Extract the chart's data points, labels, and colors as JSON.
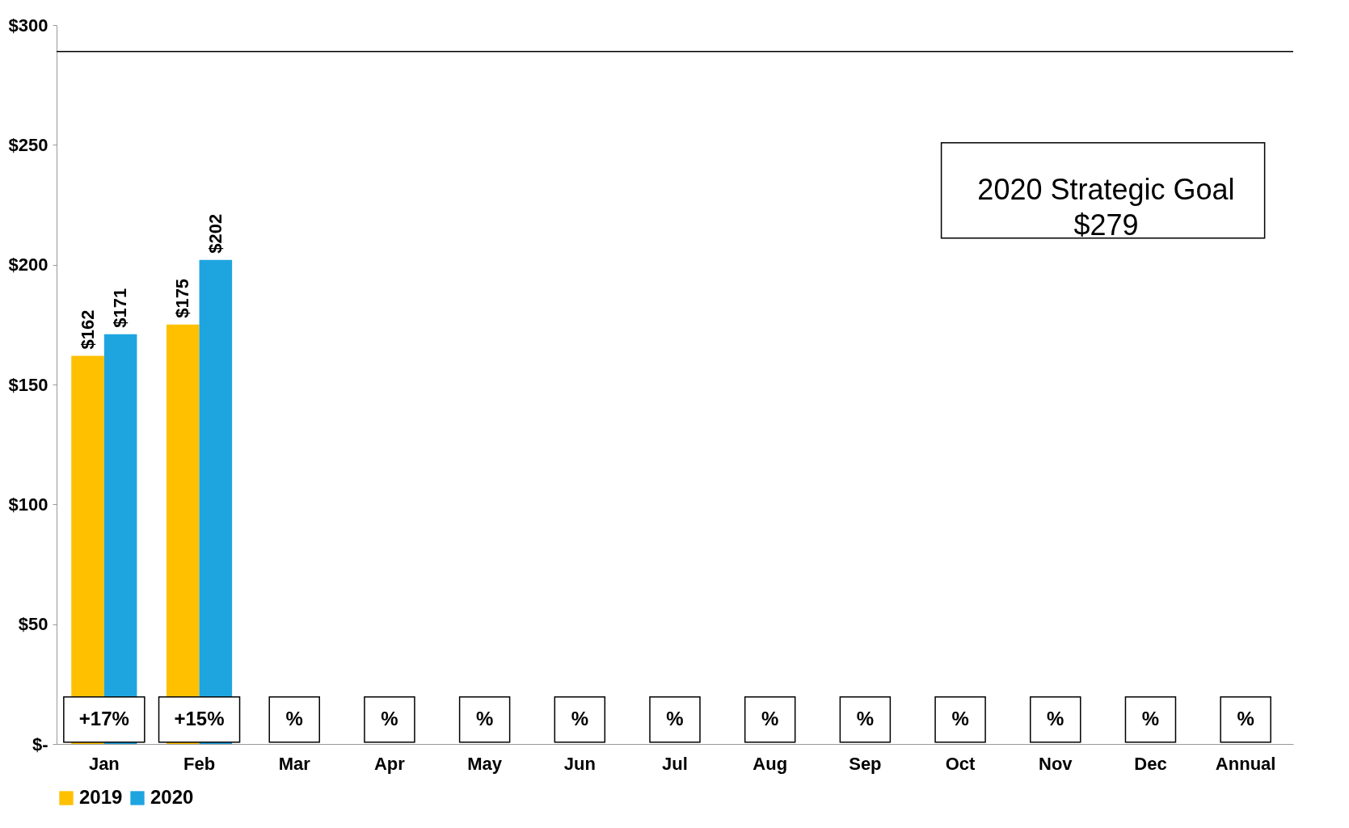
{
  "chart_data": {
    "type": "bar",
    "categories": [
      "Jan",
      "Feb",
      "Mar",
      "Apr",
      "May",
      "Jun",
      "Jul",
      "Aug",
      "Sep",
      "Oct",
      "Nov",
      "Dec",
      "Annual"
    ],
    "series": [
      {
        "name": "2019",
        "color": "#ffc000",
        "values": [
          162,
          175,
          null,
          null,
          null,
          null,
          null,
          null,
          null,
          null,
          null,
          null,
          null
        ],
        "value_labels": [
          "$162",
          "$175",
          null,
          null,
          null,
          null,
          null,
          null,
          null,
          null,
          null,
          null,
          null
        ]
      },
      {
        "name": "2020",
        "color": "#1ea5e0",
        "values": [
          171,
          202,
          null,
          null,
          null,
          null,
          null,
          null,
          null,
          null,
          null,
          null,
          null
        ],
        "value_labels": [
          "$171",
          "$202",
          null,
          null,
          null,
          null,
          null,
          null,
          null,
          null,
          null,
          null,
          null
        ]
      }
    ],
    "ylim": [
      0,
      300
    ],
    "yticks": [
      {
        "value": 0,
        "label": "$-"
      },
      {
        "value": 50,
        "label": "$50"
      },
      {
        "value": 100,
        "label": "$100"
      },
      {
        "value": 150,
        "label": "$150"
      },
      {
        "value": 200,
        "label": "$200"
      },
      {
        "value": 250,
        "label": "$250"
      },
      {
        "value": 300,
        "label": "$300"
      }
    ],
    "ref_lines": [
      {
        "axis": "y",
        "value": 289,
        "color": "#000000"
      }
    ],
    "annotations": [
      "+17%",
      "+15%",
      "%",
      "%",
      "%",
      "%",
      "%",
      "%",
      "%",
      "%",
      "%",
      "%",
      "%",
      "2020 Strategic Goal\n$279"
    ],
    "grid": false,
    "legend": "bottom"
  }
}
